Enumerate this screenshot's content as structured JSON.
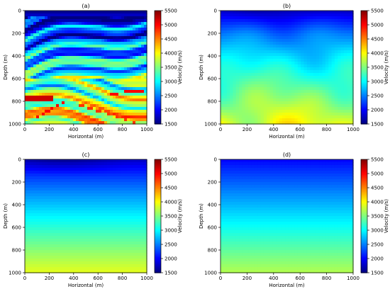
{
  "figure": {
    "subplot_count": 4
  },
  "chart_data": [
    {
      "type": "heatmap",
      "title": "(a)",
      "xlabel": "Horizontal (m)",
      "ylabel": "Depth (m)",
      "xlim": [
        0,
        1000
      ],
      "ylim": [
        1000,
        0
      ],
      "xticks": [
        "0",
        "200",
        "400",
        "600",
        "800",
        "1000"
      ],
      "yticks": [
        "0",
        "200",
        "400",
        "600",
        "800",
        "1000"
      ],
      "colorbar": {
        "label": "Velocity (m/s)",
        "range": [
          1500,
          5500
        ],
        "ticks": [
          "1500",
          "2000",
          "2500",
          "3000",
          "3500",
          "4000",
          "4500",
          "5000",
          "5500"
        ]
      },
      "model": "layered",
      "description_values": {
        "surface_velocity": 1500,
        "max_velocity": 5200
      }
    },
    {
      "type": "heatmap",
      "title": "(b)",
      "xlabel": "Horizontal (m)",
      "ylabel": "Depth (m)",
      "xlim": [
        0,
        1000
      ],
      "ylim": [
        1000,
        0
      ],
      "xticks": [
        "0",
        "200",
        "400",
        "600",
        "800",
        "1000"
      ],
      "yticks": [
        "0",
        "200",
        "400",
        "600",
        "800",
        "1000"
      ],
      "colorbar": {
        "label": "Velocity (m/s)",
        "range": [
          1500,
          5500
        ],
        "ticks": [
          "1500",
          "2000",
          "2500",
          "3000",
          "3500",
          "4000",
          "4500",
          "5000",
          "5500"
        ]
      },
      "model": "smooth-blotchy",
      "description_values": {
        "top_velocity": 1900,
        "bottom_velocity": 3900
      }
    },
    {
      "type": "heatmap",
      "title": "(c)",
      "xlabel": "Horizontal (m)",
      "ylabel": "Depth (m)",
      "xlim": [
        0,
        1000
      ],
      "ylim": [
        1000,
        0
      ],
      "xticks": [
        "0",
        "200",
        "400",
        "600",
        "800",
        "1000"
      ],
      "yticks": [
        "0",
        "200",
        "400",
        "600",
        "800",
        "1000"
      ],
      "colorbar": {
        "label": "Velocity (m/s)",
        "range": [
          1500,
          5500
        ],
        "ticks": [
          "1500",
          "2000",
          "2500",
          "3000",
          "3500",
          "4000",
          "4500",
          "5000",
          "5500"
        ]
      },
      "model": "smooth",
      "description_values": {
        "top_velocity": 1800,
        "bottom_velocity": 3900
      }
    },
    {
      "type": "heatmap",
      "title": "(d)",
      "xlabel": "Horizontal (m)",
      "ylabel": "Depth (m)",
      "xlim": [
        0,
        1000
      ],
      "ylim": [
        1000,
        0
      ],
      "xticks": [
        "0",
        "200",
        "400",
        "600",
        "800",
        "1000"
      ],
      "yticks": [
        "0",
        "200",
        "400",
        "600",
        "800",
        "1000"
      ],
      "colorbar": {
        "label": "Velocity (m/s)",
        "range": [
          1500,
          5500
        ],
        "ticks": [
          "1500",
          "2000",
          "2500",
          "3000",
          "3500",
          "4000",
          "4500",
          "5000",
          "5500"
        ]
      },
      "model": "linear-gradient",
      "description_values": {
        "top_velocity": 2000,
        "bottom_velocity": 3700
      }
    }
  ]
}
